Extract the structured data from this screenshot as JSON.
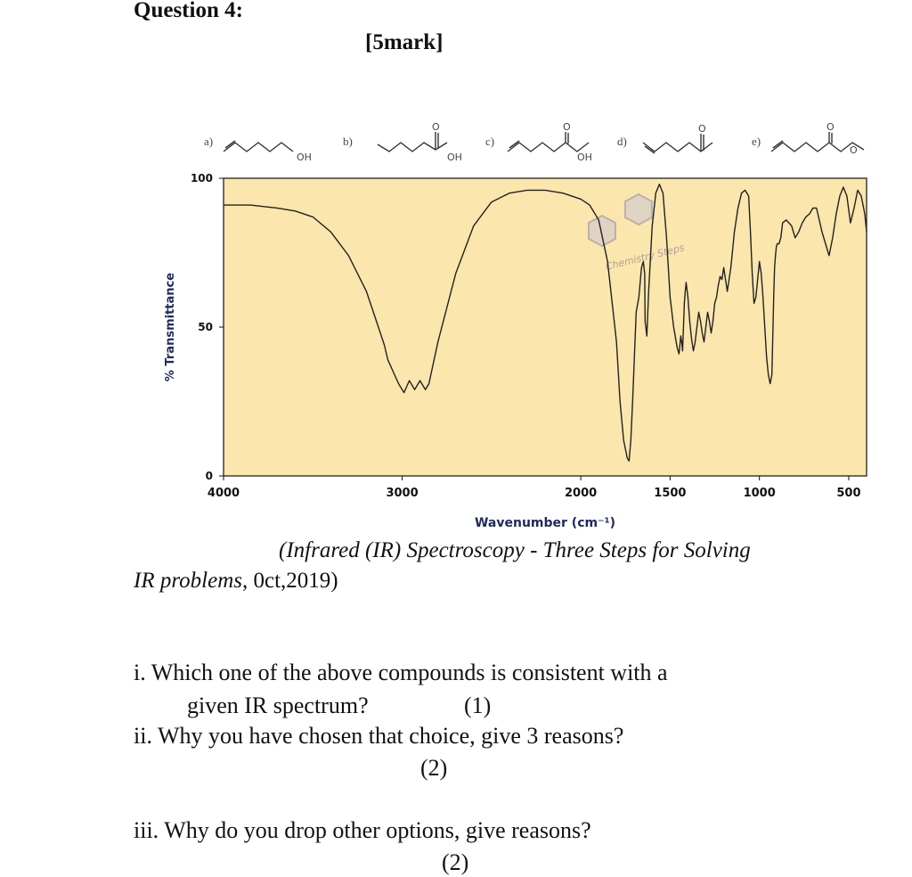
{
  "question": {
    "heading": "Question 4:",
    "marks": "[5mark]"
  },
  "compounds": [
    {
      "letter": "a)",
      "label": "OH"
    },
    {
      "letter": "b)",
      "label": "OH"
    },
    {
      "letter": "c)",
      "label": "OH"
    },
    {
      "letter": "d)",
      "label": ""
    },
    {
      "letter": "e)",
      "label": ""
    }
  ],
  "compound_atoms": {
    "oxygen": "O"
  },
  "chart_data": {
    "type": "line",
    "title": "",
    "xlabel": "Wavenumber (cm⁻¹)",
    "ylabel": "% Transmittance",
    "xlim": [
      4000,
      400
    ],
    "ylim": [
      0,
      100
    ],
    "x_reversed": true,
    "x_ticks": [
      4000,
      3000,
      2000,
      1500,
      1000,
      500
    ],
    "y_ticks": [
      0,
      50,
      100
    ],
    "grid": false,
    "background": "#fbe6ad",
    "line_color": "#222222",
    "watermark": "Chemistry Steps",
    "series": [
      {
        "name": "",
        "x": [
          4000,
          3850,
          3700,
          3600,
          3500,
          3400,
          3300,
          3200,
          3150,
          3100,
          3080,
          3050,
          3020,
          2990,
          2960,
          2930,
          2900,
          2870,
          2850,
          2800,
          2700,
          2600,
          2500,
          2400,
          2300,
          2200,
          2100,
          2000,
          1950,
          1900,
          1850,
          1800,
          1780,
          1760,
          1740,
          1730,
          1720,
          1710,
          1700,
          1690,
          1675,
          1660,
          1650,
          1642,
          1640,
          1630,
          1620,
          1600,
          1580,
          1560,
          1540,
          1520,
          1500,
          1480,
          1460,
          1450,
          1445,
          1440,
          1435,
          1430,
          1420,
          1415,
          1410,
          1400,
          1390,
          1380,
          1370,
          1360,
          1350,
          1340,
          1330,
          1320,
          1310,
          1300,
          1290,
          1280,
          1270,
          1260,
          1250,
          1240,
          1230,
          1220,
          1210,
          1200,
          1180,
          1160,
          1140,
          1120,
          1100,
          1080,
          1060,
          1050,
          1040,
          1030,
          1020,
          1010,
          1000,
          990,
          980,
          970,
          960,
          950,
          940,
          930,
          920,
          915,
          910,
          905,
          900,
          890,
          880,
          870,
          850,
          820,
          800,
          780,
          760,
          740,
          720,
          700,
          680,
          650,
          630,
          610,
          590,
          570,
          550,
          530,
          510,
          490,
          470,
          450,
          430,
          410,
          400
        ],
        "y": [
          91,
          91,
          90,
          89,
          87,
          82,
          74,
          62,
          53,
          44,
          39,
          35,
          31,
          28,
          32,
          29,
          32,
          29,
          31,
          45,
          68,
          84,
          92,
          95,
          96,
          96,
          95,
          93,
          91,
          86,
          72,
          45,
          25,
          12,
          6,
          5,
          12,
          25,
          40,
          55,
          60,
          70,
          72,
          68,
          52,
          47,
          62,
          84,
          95,
          98,
          95,
          80,
          60,
          50,
          43,
          41,
          44,
          47,
          45,
          42,
          58,
          62,
          65,
          60,
          52,
          46,
          42,
          45,
          50,
          55,
          52,
          48,
          45,
          50,
          55,
          52,
          48,
          52,
          58,
          60,
          64,
          67,
          66,
          70,
          62,
          70,
          82,
          90,
          95,
          96,
          94,
          82,
          68,
          58,
          60,
          66,
          72,
          68,
          60,
          50,
          40,
          34,
          31,
          34,
          60,
          70,
          74,
          77,
          78,
          78,
          80,
          85,
          86,
          84,
          80,
          82,
          85,
          87,
          88,
          90,
          90,
          82,
          78,
          74,
          80,
          88,
          94,
          97,
          94,
          85,
          90,
          96,
          94,
          88,
          82
        ]
      }
    ]
  },
  "citation": {
    "line1": "(Infrared (IR) Spectroscopy - Three Steps for Solving",
    "line2_italic": "IR problems",
    "line2_rest": ", 0ct,2019)"
  },
  "questions": {
    "q1_line1": "i. Which one of the above compounds is consistent with a",
    "q1_line2": "given IR spectrum?",
    "q1_points": "(1)",
    "q2_line1": "ii. Why you have chosen that choice,  give 3 reasons?",
    "q2_points": "(2)",
    "q3_line1": "iii. Why do you drop other options, give reasons?",
    "q3_points": "(2)"
  }
}
